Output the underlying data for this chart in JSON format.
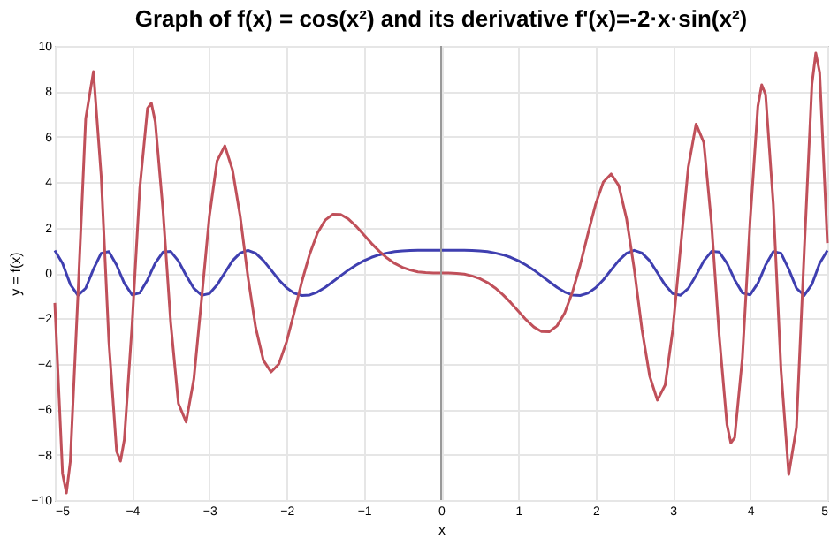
{
  "chart_data": {
    "type": "line",
    "title": "Graph of f(x) = cos(x²) and its derivative f'(x)=-2·x·sin(x²)",
    "xlabel": "x",
    "ylabel": "y = f(x)",
    "x": [
      -5.0,
      -4.9,
      -4.85,
      -4.8,
      -4.7,
      -4.6,
      -4.5,
      -4.4,
      -4.3,
      -4.2,
      -4.15,
      -4.1,
      -4.0,
      -3.9,
      -3.8,
      -3.75,
      -3.7,
      -3.6,
      -3.5,
      -3.4,
      -3.3,
      -3.2,
      -3.1,
      -3.0,
      -2.9,
      -2.8,
      -2.7,
      -2.6,
      -2.5,
      -2.4,
      -2.3,
      -2.2,
      -2.1,
      -2.0,
      -1.9,
      -1.8,
      -1.7,
      -1.6,
      -1.5,
      -1.4,
      -1.3,
      -1.2,
      -1.1,
      -1.0,
      -0.9,
      -0.8,
      -0.7,
      -0.6,
      -0.5,
      -0.4,
      -0.3,
      -0.2,
      -0.1,
      0,
      0.1,
      0.2,
      0.3,
      0.4,
      0.5,
      0.6,
      0.7,
      0.8,
      0.9,
      1.0,
      1.1,
      1.2,
      1.3,
      1.4,
      1.5,
      1.6,
      1.7,
      1.8,
      1.9,
      2.0,
      2.1,
      2.2,
      2.3,
      2.4,
      2.5,
      2.6,
      2.7,
      2.8,
      2.9,
      3.0,
      3.1,
      3.2,
      3.3,
      3.4,
      3.5,
      3.6,
      3.7,
      3.75,
      3.8,
      3.9,
      4.0,
      4.1,
      4.15,
      4.2,
      4.3,
      4.4,
      4.5,
      4.6,
      4.7,
      4.8,
      4.85,
      4.9,
      5.0
    ],
    "series": [
      {
        "color": "#3f3fb0",
        "values": [
          0.99,
          0.43,
          -0.04,
          -0.5,
          -0.99,
          -0.67,
          0.17,
          0.87,
          0.94,
          0.35,
          -0.06,
          -0.45,
          -0.96,
          -0.88,
          -0.3,
          0.07,
          0.43,
          0.92,
          0.95,
          0.53,
          -0.11,
          -0.68,
          -0.98,
          -0.91,
          -0.53,
          0.01,
          0.54,
          0.88,
          1.0,
          0.87,
          0.55,
          0.13,
          -0.3,
          -0.65,
          -0.89,
          -0.99,
          -0.97,
          -0.84,
          -0.63,
          -0.38,
          -0.12,
          0.13,
          0.35,
          0.54,
          0.69,
          0.8,
          0.88,
          0.94,
          0.97,
          0.99,
          1.0,
          1.0,
          1.0,
          1.0,
          1.0,
          1.0,
          1.0,
          0.99,
          0.97,
          0.94,
          0.88,
          0.8,
          0.69,
          0.54,
          0.35,
          0.13,
          -0.12,
          -0.38,
          -0.63,
          -0.84,
          -0.97,
          -0.99,
          -0.89,
          -0.65,
          -0.3,
          0.13,
          0.55,
          0.87,
          1.0,
          0.88,
          0.54,
          0.01,
          -0.53,
          -0.91,
          -0.98,
          -0.68,
          -0.11,
          0.53,
          0.95,
          0.92,
          0.43,
          0.07,
          -0.3,
          -0.88,
          -0.96,
          -0.45,
          -0.06,
          0.35,
          0.94,
          0.87,
          0.17,
          -0.67,
          -0.99,
          -0.5,
          -0.04,
          0.43,
          0.99
        ]
      },
      {
        "color": "#c0505a",
        "values": [
          -1.32,
          -8.83,
          -9.69,
          -8.32,
          -0.93,
          6.8,
          8.87,
          4.3,
          -3.03,
          -7.86,
          -8.29,
          -7.34,
          -2.3,
          3.73,
          7.25,
          7.48,
          6.67,
          2.76,
          -2.18,
          -5.75,
          -6.56,
          -4.67,
          -1.14,
          2.47,
          4.93,
          5.6,
          4.54,
          2.49,
          -0.17,
          -2.4,
          -3.85,
          -4.36,
          -4.01,
          -3.03,
          -1.72,
          -0.35,
          0.84,
          1.76,
          2.33,
          2.59,
          2.58,
          2.38,
          2.06,
          1.68,
          1.3,
          0.96,
          0.66,
          0.42,
          0.25,
          0.13,
          0.05,
          0.02,
          0.0,
          0,
          0.0,
          -0.02,
          -0.05,
          -0.13,
          -0.25,
          -0.42,
          -0.66,
          -0.96,
          -1.3,
          -1.68,
          -2.06,
          -2.38,
          -2.58,
          -2.59,
          -2.33,
          -1.76,
          -0.84,
          0.35,
          1.72,
          3.03,
          4.01,
          4.36,
          3.85,
          2.4,
          0.17,
          -2.49,
          -4.54,
          -5.6,
          -4.93,
          -2.47,
          1.14,
          4.67,
          6.56,
          5.75,
          2.18,
          -2.76,
          -6.67,
          -7.48,
          -7.25,
          -3.73,
          2.3,
          7.34,
          8.29,
          7.86,
          3.03,
          -4.3,
          -8.87,
          -6.8,
          0.93,
          8.32,
          9.69,
          8.83,
          1.32
        ]
      }
    ],
    "xlim": [
      -5,
      5
    ],
    "xticks": [
      -5,
      -4,
      -3,
      -2,
      -1,
      0,
      1,
      2,
      3,
      4,
      5
    ],
    "ylim": [
      -10,
      10
    ],
    "yticks": [
      -10,
      -8,
      -6,
      -4,
      -2,
      0,
      2,
      4,
      6,
      8,
      10
    ],
    "ref_lines": [
      {
        "axis": "x",
        "value": 0,
        "color": "#999999"
      }
    ],
    "grid": true,
    "marker": "none",
    "line_style": "solid"
  }
}
